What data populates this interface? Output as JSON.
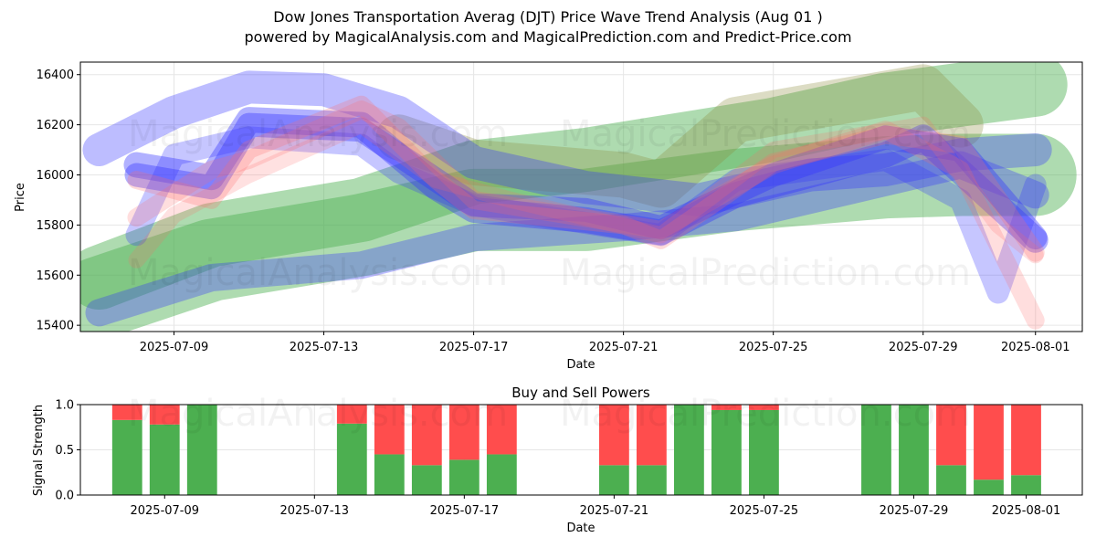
{
  "header": {
    "title": "Dow Jones Transportation Averag (DJT) Price Wave Trend Analysis (Aug 01 )",
    "subtitle": "powered by MagicalAnalysis.com and MagicalPrediction.com and Predict-Price.com"
  },
  "watermarks": [
    "MagicalAnalysis.com",
    "MagicalPrediction.com"
  ],
  "colors": {
    "green_band": "#4caf50",
    "blue_band": "#3333ff",
    "red_band": "#ff6b6b",
    "buy": "#4caf50",
    "sell": "#ff4d4d"
  },
  "chart_data": [
    {
      "type": "area",
      "title": "",
      "xlabel": "Date",
      "ylabel": "Price",
      "x_ticks": [
        "2025-07-09",
        "2025-07-13",
        "2025-07-17",
        "2025-07-21",
        "2025-07-25",
        "2025-07-29",
        "2025-08-01"
      ],
      "y_ticks": [
        15400,
        15600,
        15800,
        16000,
        16200,
        16400
      ],
      "xlim": [
        "2025-07-06 12:00",
        "2025-08-02 06:00"
      ],
      "ylim": [
        15375,
        16450
      ],
      "grid": true,
      "series": [
        {
          "color": "green",
          "width": 70,
          "opacity": 0.45,
          "points": [
            [
              "2025-07-07",
              15590
            ],
            [
              "2025-07-10",
              15760
            ],
            [
              "2025-07-14",
              15860
            ],
            [
              "2025-07-17",
              16010
            ],
            [
              "2025-07-20",
              16060
            ],
            [
              "2025-07-25",
              16180
            ],
            [
              "2025-07-28",
              16280
            ],
            [
              "2025-08-01",
              16360
            ]
          ]
        },
        {
          "color": "green",
          "width": 90,
          "opacity": 0.45,
          "points": [
            [
              "2025-07-07",
              15510
            ],
            [
              "2025-07-10",
              15660
            ],
            [
              "2025-07-14",
              15760
            ],
            [
              "2025-07-17",
              15860
            ],
            [
              "2025-07-20",
              15860
            ],
            [
              "2025-07-24",
              15940
            ],
            [
              "2025-07-28",
              15990
            ],
            [
              "2025-07-30",
              16000
            ],
            [
              "2025-08-01",
              16000
            ]
          ]
        },
        {
          "color": "olive",
          "width": 50,
          "opacity": 0.3,
          "points": [
            [
              "2025-07-15",
              16150
            ],
            [
              "2025-07-17",
              16050
            ],
            [
              "2025-07-21",
              16000
            ],
            [
              "2025-07-22",
              15960
            ],
            [
              "2025-07-24",
              16220
            ],
            [
              "2025-07-29",
              16350
            ],
            [
              "2025-07-30",
              16200
            ]
          ]
        },
        {
          "color": "blue",
          "width": 36,
          "opacity": 0.32,
          "points": [
            [
              "2025-07-07",
              16100
            ],
            [
              "2025-07-09",
              16250
            ],
            [
              "2025-07-11",
              16350
            ],
            [
              "2025-07-13",
              16340
            ],
            [
              "2025-07-15",
              16250
            ],
            [
              "2025-07-17",
              16050
            ],
            [
              "2025-07-20",
              15950
            ],
            [
              "2025-07-23",
              15900
            ],
            [
              "2025-07-26",
              16000
            ],
            [
              "2025-07-28",
              16020
            ],
            [
              "2025-07-30",
              16080
            ],
            [
              "2025-08-01",
              16100
            ]
          ]
        },
        {
          "color": "blue",
          "width": 30,
          "opacity": 0.32,
          "points": [
            [
              "2025-07-07",
              15450
            ],
            [
              "2025-07-10",
              15590
            ],
            [
              "2025-07-14",
              15640
            ],
            [
              "2025-07-17",
              15750
            ],
            [
              "2025-07-21",
              15790
            ],
            [
              "2025-07-24",
              15830
            ],
            [
              "2025-07-28",
              15970
            ],
            [
              "2025-07-30",
              16040
            ],
            [
              "2025-08-01",
              15920
            ]
          ]
        },
        {
          "color": "blue",
          "width": 28,
          "opacity": 0.38,
          "points": [
            [
              "2025-07-08",
              16040
            ],
            [
              "2025-07-10",
              15990
            ],
            [
              "2025-07-11",
              16220
            ],
            [
              "2025-07-14",
              16200
            ],
            [
              "2025-07-16",
              15950
            ],
            [
              "2025-07-17",
              15860
            ],
            [
              "2025-07-20",
              15820
            ],
            [
              "2025-07-22",
              15770
            ],
            [
              "2025-07-24",
              15920
            ],
            [
              "2025-07-28",
              16080
            ],
            [
              "2025-07-29",
              16150
            ],
            [
              "2025-08-01",
              15740
            ]
          ]
        },
        {
          "color": "blue",
          "width": 26,
          "opacity": 0.38,
          "points": [
            [
              "2025-07-08",
              16000
            ],
            [
              "2025-07-10",
              15950
            ],
            [
              "2025-07-11",
              16200
            ],
            [
              "2025-07-14",
              16180
            ],
            [
              "2025-07-17",
              15880
            ],
            [
              "2025-07-20",
              15860
            ],
            [
              "2025-07-22",
              15790
            ],
            [
              "2025-07-25",
              16000
            ],
            [
              "2025-07-28",
              16150
            ],
            [
              "2025-07-30",
              16100
            ],
            [
              "2025-08-01",
              15750
            ]
          ]
        },
        {
          "color": "blue",
          "width": 24,
          "opacity": 0.28,
          "points": [
            [
              "2025-07-08",
              15760
            ],
            [
              "2025-07-09",
              16080
            ],
            [
              "2025-07-11",
              16150
            ],
            [
              "2025-07-14",
              16120
            ],
            [
              "2025-07-15",
              16010
            ],
            [
              "2025-07-17",
              15880
            ],
            [
              "2025-07-22",
              15760
            ],
            [
              "2025-07-24",
              15980
            ],
            [
              "2025-07-28",
              16060
            ],
            [
              "2025-07-30",
              15900
            ],
            [
              "2025-07-31",
              15530
            ],
            [
              "2025-08-01",
              15960
            ]
          ]
        },
        {
          "color": "red",
          "width": 20,
          "opacity": 0.25,
          "points": [
            [
              "2025-07-08",
              15980
            ],
            [
              "2025-07-10",
              15900
            ],
            [
              "2025-07-11",
              16100
            ],
            [
              "2025-07-14",
              16280
            ],
            [
              "2025-07-16",
              15980
            ],
            [
              "2025-07-17",
              15860
            ],
            [
              "2025-07-21",
              15800
            ],
            [
              "2025-07-22",
              15740
            ],
            [
              "2025-07-25",
              16050
            ],
            [
              "2025-07-28",
              16160
            ],
            [
              "2025-07-30",
              16120
            ],
            [
              "2025-08-01",
              15690
            ]
          ]
        },
        {
          "color": "red",
          "width": 20,
          "opacity": 0.22,
          "points": [
            [
              "2025-07-08",
              15830
            ],
            [
              "2025-07-10",
              16020
            ],
            [
              "2025-07-11",
              16060
            ],
            [
              "2025-07-14",
              16260
            ],
            [
              "2025-07-15",
              16190
            ],
            [
              "2025-07-17",
              15900
            ],
            [
              "2025-07-22",
              15780
            ],
            [
              "2025-07-25",
              16040
            ],
            [
              "2025-07-28",
              16180
            ],
            [
              "2025-07-30",
              16020
            ],
            [
              "2025-08-01",
              15420
            ]
          ]
        },
        {
          "color": "red",
          "width": 18,
          "opacity": 0.2,
          "points": [
            [
              "2025-07-08",
              15660
            ],
            [
              "2025-07-09",
              15840
            ],
            [
              "2025-07-11",
              16000
            ],
            [
              "2025-07-14",
              16200
            ],
            [
              "2025-07-16",
              15980
            ],
            [
              "2025-07-18",
              15900
            ],
            [
              "2025-07-22",
              15760
            ],
            [
              "2025-07-25",
              16100
            ],
            [
              "2025-07-29",
              16200
            ],
            [
              "2025-07-31",
              15800
            ],
            [
              "2025-08-01",
              15680
            ]
          ]
        }
      ]
    },
    {
      "type": "bar",
      "title": "Buy and Sell Powers",
      "xlabel": "Date",
      "ylabel": "Signal Strength",
      "x_ticks": [
        "2025-07-09",
        "2025-07-13",
        "2025-07-17",
        "2025-07-21",
        "2025-07-25",
        "2025-07-29",
        "2025-08-01"
      ],
      "y_ticks": [
        0.0,
        0.5,
        1.0
      ],
      "ylim": [
        0,
        1
      ],
      "grid": true,
      "categories": [
        "2025-07-08",
        "2025-07-09",
        "2025-07-10",
        "2025-07-14",
        "2025-07-15",
        "2025-07-16",
        "2025-07-17",
        "2025-07-18",
        "2025-07-21",
        "2025-07-22",
        "2025-07-23",
        "2025-07-24",
        "2025-07-25",
        "2025-07-28",
        "2025-07-29",
        "2025-07-30",
        "2025-07-31",
        "2025-08-01"
      ],
      "series": [
        {
          "values": [
            0.83,
            0.78,
            1.0,
            0.79,
            0.45,
            0.33,
            0.39,
            0.45,
            0.33,
            0.33,
            1.0,
            0.94,
            0.94,
            1.0,
            1.0,
            0.33,
            0.17,
            0.22
          ]
        },
        {
          "values": [
            0.17,
            0.22,
            0.0,
            0.21,
            0.55,
            0.67,
            0.61,
            0.55,
            0.67,
            0.67,
            0.0,
            0.06,
            0.06,
            0.0,
            0.0,
            0.67,
            0.83,
            0.78
          ]
        }
      ]
    }
  ]
}
